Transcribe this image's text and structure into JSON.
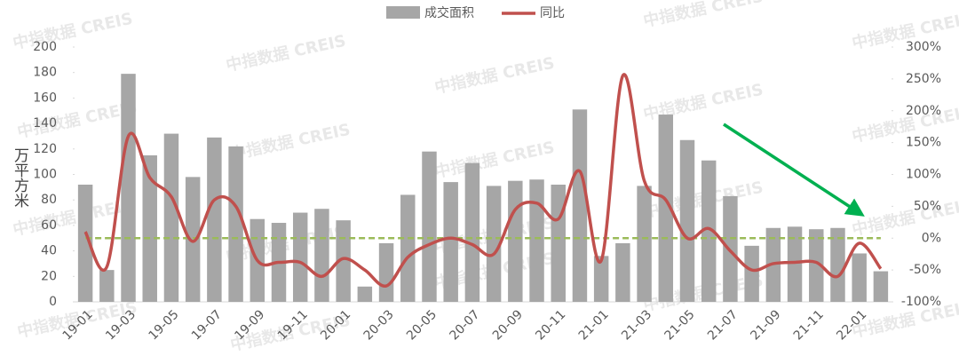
{
  "chart_data": {
    "type": "bar_line",
    "y_label": "万平方米",
    "watermark": "中指数据 CREIS",
    "categories": [
      "19-01",
      null,
      "19-03",
      null,
      "19-05",
      null,
      "19-07",
      null,
      "19-09",
      null,
      "19-11",
      null,
      "20-01",
      null,
      "20-03",
      null,
      "20-05",
      null,
      "20-07",
      null,
      "20-09",
      null,
      "20-11",
      null,
      "21-01",
      null,
      "21-03",
      null,
      "21-05",
      null,
      "21-07",
      null,
      "21-09",
      null,
      "21-11",
      null,
      "22-01",
      null
    ],
    "series": [
      {
        "name": "成交面积",
        "type": "bar",
        "color": "#a6a6a6",
        "axis": "y",
        "values": [
          92,
          25,
          179,
          115,
          132,
          98,
          129,
          122,
          65,
          62,
          70,
          73,
          64,
          12,
          46,
          84,
          118,
          94,
          109,
          91,
          95,
          96,
          92,
          151,
          36,
          46,
          91,
          147,
          127,
          111,
          83,
          44,
          58,
          59,
          57,
          58,
          38,
          24
        ]
      },
      {
        "name": "同比",
        "type": "line",
        "color": "#c0504d",
        "axis": "y2",
        "values": [
          10,
          -45,
          160,
          95,
          65,
          -5,
          60,
          50,
          -35,
          -38,
          -38,
          -60,
          -32,
          -50,
          -75,
          -30,
          -10,
          0,
          -10,
          -25,
          45,
          55,
          30,
          105,
          -35,
          255,
          90,
          60,
          0,
          15,
          -20,
          -50,
          -40,
          -38,
          -38,
          -60,
          -8,
          -48
        ]
      }
    ],
    "ylim": [
      0,
      200
    ],
    "yticks": [
      0,
      20,
      40,
      60,
      80,
      100,
      120,
      140,
      160,
      180,
      200
    ],
    "y2lim": [
      -100,
      300
    ],
    "y2ticks": [
      {
        "value": -100,
        "label": "-100%"
      },
      {
        "value": -50,
        "label": "-50%"
      },
      {
        "value": 0,
        "label": "0%"
      },
      {
        "value": 50,
        "label": "50%"
      },
      {
        "value": 100,
        "label": "100%"
      },
      {
        "value": 150,
        "label": "150%"
      },
      {
        "value": 200,
        "label": "200%"
      },
      {
        "value": 250,
        "label": "250%"
      },
      {
        "value": 300,
        "label": "300%"
      }
    ],
    "reference_line": {
      "axis": "y2",
      "value": 0,
      "color": "#9bbb59",
      "style": "dashed"
    },
    "arrow_color": "#00b050",
    "legend": "top"
  }
}
